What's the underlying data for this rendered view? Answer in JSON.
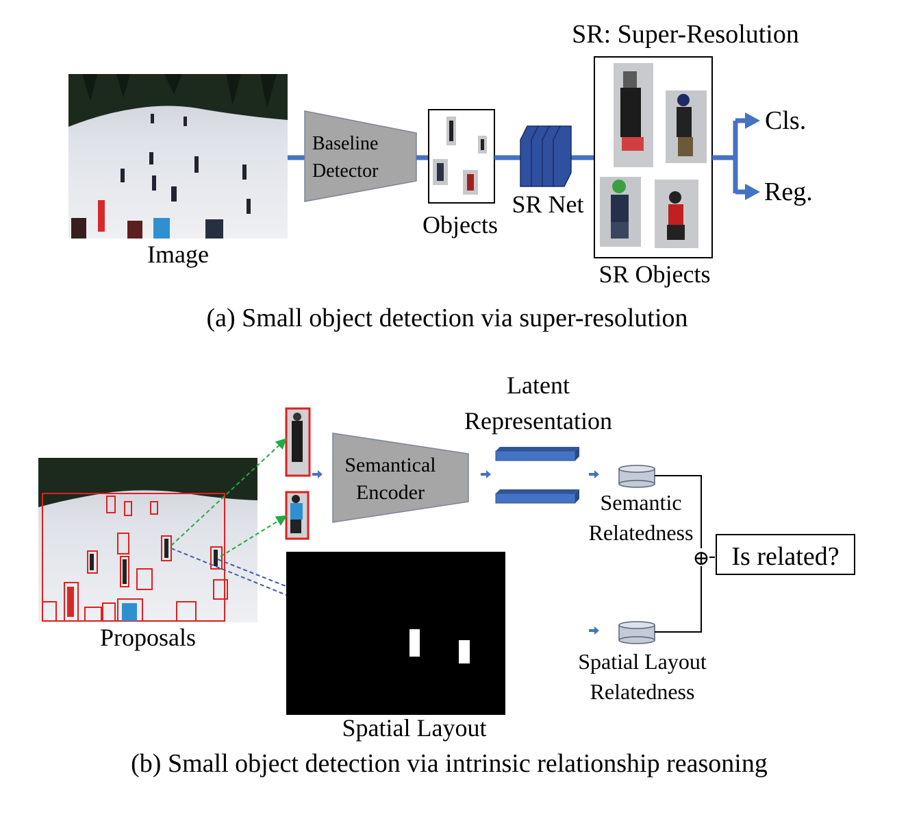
{
  "panel_a": {
    "caption": "(a) Small object detection via super-resolution",
    "image_label": "Image",
    "detector_label_line1": "Baseline",
    "detector_label_line2": "Detector",
    "objects_label": "Objects",
    "srnet_label": "SR Net",
    "sr_title": "SR: Super-Resolution",
    "sr_objects_label": "SR Objects",
    "cls_label": "Cls.",
    "reg_label": "Reg."
  },
  "panel_b": {
    "caption": "(b) Small object detection via intrinsic relationship reasoning",
    "proposals_label": "Proposals",
    "encoder_label_line1": "Semantical",
    "encoder_label_line2": "Encoder",
    "latent_line1": "Latent",
    "latent_line2": "Representation",
    "semantic_line1": "Semantic",
    "semantic_line2": "Relatedness",
    "spatial_line1": "Spatial Layout",
    "spatial_line2": "Relatedness",
    "is_related": "Is related?",
    "spatial_layout_label": "Spatial Layout",
    "plus_symbol": "⊕"
  },
  "colors": {
    "accent_blue": "#4472c4",
    "dark_blue": "#2f4f9f",
    "gray_block": "#a6a6a6",
    "proposal_red": "#e02020",
    "green_dash": "#22aa44",
    "snow": "#e8eaee",
    "trees": "#1c2a1e"
  }
}
